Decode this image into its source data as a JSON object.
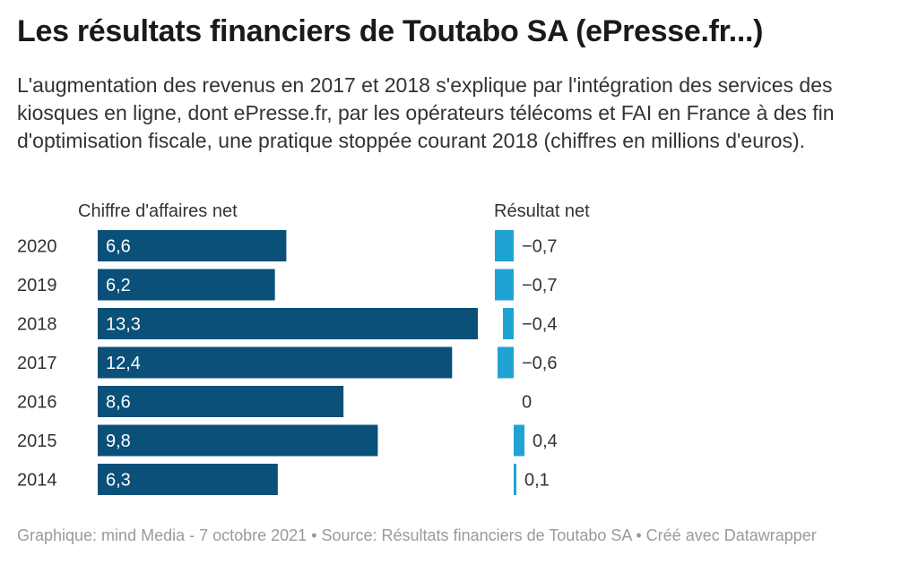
{
  "title": "Les résultats financiers de Toutabo SA (ePresse.fr...)",
  "subtitle": "L'augmentation des revenus en 2017 et 2018 s'explique par l'intégration des services des kiosques en ligne, dont ePresse.fr, par les opérateurs télécoms et FAI en France à des fin d'optimisation fiscale, une pratique stoppée courant 2018 (chiffres en millions d'euros).",
  "footer": "Graphique: mind Media - 7 octobre 2021 • Source: Résultats financiers de Toutabo SA • Créé avec Datawrapper",
  "colors": {
    "revenue": "#0a5078",
    "result": "#1fa3d4"
  },
  "chart_data": {
    "type": "bar",
    "categories": [
      "2020",
      "2019",
      "2018",
      "2017",
      "2016",
      "2015",
      "2014"
    ],
    "series": [
      {
        "name": "Chiffre d'affaires net",
        "values": [
          6.6,
          6.2,
          13.3,
          12.4,
          8.6,
          9.8,
          6.3
        ],
        "labels": [
          "6,6",
          "6,2",
          "13,3",
          "12,4",
          "8,6",
          "9,8",
          "6,3"
        ]
      },
      {
        "name": "Résultat net",
        "values": [
          -0.7,
          -0.7,
          -0.4,
          -0.6,
          0,
          0.4,
          0.1
        ],
        "labels": [
          "−0,7",
          "−0,7",
          "−0,4",
          "−0,6",
          "0",
          "0,4",
          "0,1"
        ]
      }
    ]
  }
}
